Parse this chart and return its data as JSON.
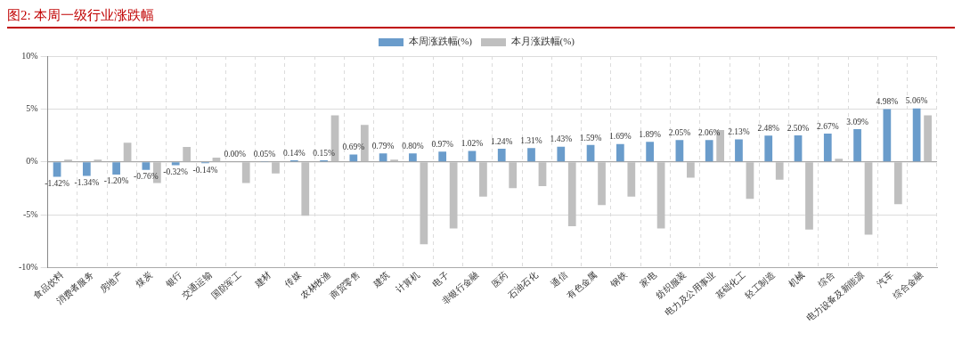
{
  "chart_data": {
    "type": "bar",
    "title": "图2:  本周一级行业涨跌幅",
    "categories": [
      "食品饮料",
      "消费者服务",
      "房地产",
      "煤炭",
      "银行",
      "交通运输",
      "国防军工",
      "建材",
      "传媒",
      "农林牧渔",
      "商贸零售",
      "建筑",
      "计算机",
      "电子",
      "非银行金融",
      "医药",
      "石油石化",
      "通信",
      "有色金属",
      "钢铁",
      "家电",
      "纺织服装",
      "电力及公用事业",
      "基础化工",
      "轻工制造",
      "机械",
      "综合",
      "电力设备及新能源",
      "汽车",
      "综合金融"
    ],
    "series": [
      {
        "name": "本周涨跌幅(%)",
        "color": "#6a9ccb",
        "values": [
          -1.42,
          -1.34,
          -1.2,
          -0.76,
          -0.32,
          -0.14,
          0,
          0.05,
          0.14,
          0.15,
          0.69,
          0.79,
          0.8,
          0.97,
          1.02,
          1.24,
          1.31,
          1.43,
          1.59,
          1.69,
          1.89,
          2.05,
          2.06,
          2.13,
          2.48,
          2.5,
          2.67,
          3.09,
          4.98,
          5.06
        ],
        "value_labels": [
          "-1.42%",
          "-1.34%",
          "-1.20%",
          "-0.76%",
          "-0.32%",
          "-0.14%",
          "0.00%",
          "0.05%",
          "0.14%",
          "0.15%",
          "0.69%",
          "0.79%",
          "0.80%",
          "0.97%",
          "1.02%",
          "1.24%",
          "1.31%",
          "1.43%",
          "1.59%",
          "1.69%",
          "1.89%",
          "2.05%",
          "2.06%",
          "2.13%",
          "2.48%",
          "2.50%",
          "2.67%",
          "3.09%",
          "4.98%",
          "5.06%"
        ]
      },
      {
        "name": "本月涨跌幅(%)",
        "color": "#bfbfbf",
        "values": [
          0.2,
          0.2,
          1.8,
          -2.0,
          1.4,
          0.4,
          -2.0,
          -1.1,
          -5.1,
          4.4,
          3.5,
          0.2,
          -7.8,
          -6.3,
          -3.3,
          -2.5,
          -2.3,
          -6.1,
          -4.1,
          -3.3,
          -6.3,
          -1.5,
          3.0,
          -3.5,
          -1.7,
          -6.4,
          0.3,
          -6.9,
          -4.0,
          4.4
        ]
      }
    ],
    "ylim": [
      -10,
      10
    ],
    "yticks": [
      {
        "value": -10,
        "label": "-10%"
      },
      {
        "value": -5,
        "label": "-5%"
      },
      {
        "value": 0,
        "label": "0%"
      },
      {
        "value": 5,
        "label": "5%"
      },
      {
        "value": 10,
        "label": "10%"
      }
    ],
    "grid": true,
    "legend": "top"
  }
}
